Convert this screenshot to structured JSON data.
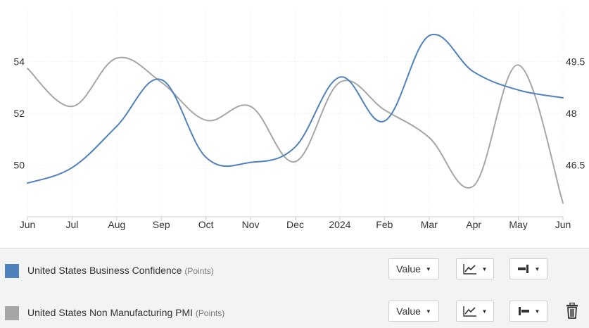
{
  "chart_data": {
    "type": "line",
    "categories": [
      "Jun",
      "Jul",
      "Aug",
      "Sep",
      "Oct",
      "Nov",
      "Dec",
      "2024",
      "Feb",
      "Mar",
      "Apr",
      "May",
      "Jun"
    ],
    "series": [
      {
        "name": "United States Business Confidence",
        "unit": "(Points)",
        "color": "#4f81bd",
        "axis": "left",
        "values": [
          49.3,
          49.9,
          51.5,
          53.3,
          50.3,
          50.1,
          50.7,
          53.4,
          51.7,
          55.0,
          53.6,
          52.9,
          52.6
        ]
      },
      {
        "name": "United States Non Manufacturing PMI",
        "unit": "(Points)",
        "color": "#a6a6a6",
        "axis": "right",
        "values": [
          49.3,
          48.2,
          49.6,
          48.9,
          47.8,
          48.2,
          46.6,
          48.9,
          48.1,
          47.3,
          45.9,
          49.4,
          45.4
        ]
      }
    ],
    "left_axis": {
      "ticks": [
        "50",
        "52",
        "54"
      ],
      "tick_values": [
        50,
        52,
        54
      ],
      "ylim": [
        48,
        56
      ]
    },
    "right_axis": {
      "ticks": [
        "46.5",
        "48",
        "49.5"
      ],
      "tick_values": [
        46.5,
        48,
        49.5
      ],
      "ylim": [
        45,
        51
      ]
    },
    "grid": true,
    "title": "",
    "xlabel": "",
    "ylabel": ""
  },
  "legend": {
    "rows": [
      {
        "name": "United States Business Confidence",
        "unit": "(Points)",
        "color": "#4f81bd",
        "value_label": "Value",
        "chart_type_icon": "line-chart-icon",
        "axis_icon": "axis-right-icon",
        "has_delete": false
      },
      {
        "name": "United States Non Manufacturing PMI",
        "unit": "(Points)",
        "color": "#a6a6a6",
        "value_label": "Value",
        "chart_type_icon": "line-chart-icon",
        "axis_icon": "axis-left-icon",
        "has_delete": true
      }
    ],
    "delete_icon": "trash-icon"
  }
}
